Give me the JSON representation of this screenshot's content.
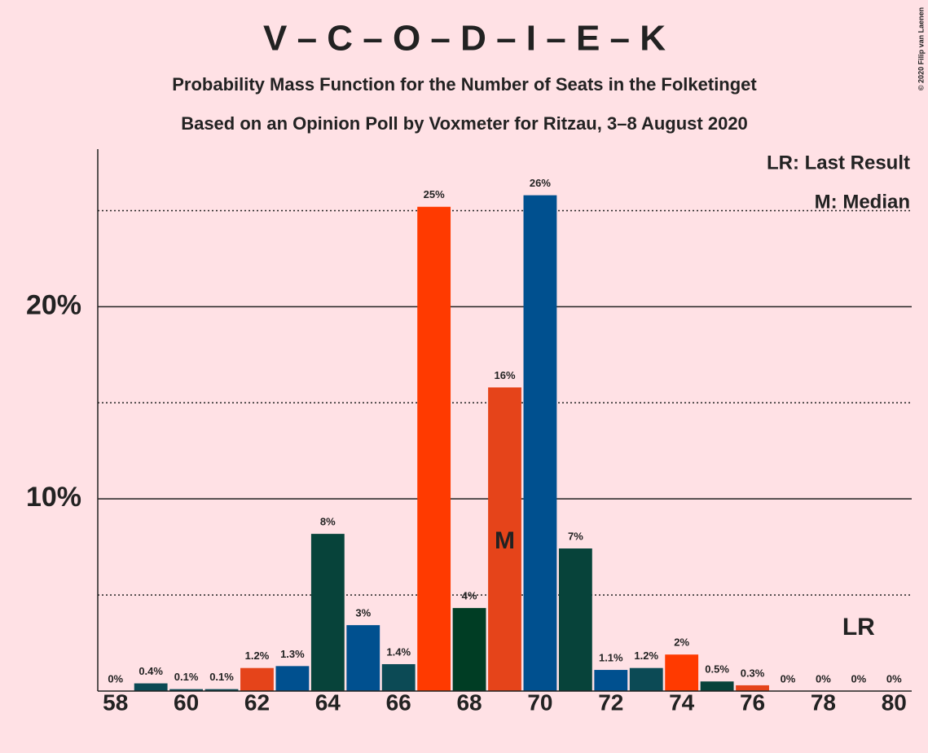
{
  "chart_data": {
    "type": "bar",
    "title": "V – C – O – D – I – E – K",
    "subtitle": [
      "Probability Mass Function for the Number of Seats in the Folketinget",
      "Based on an Opinion Poll by Voxmeter for Ritzau, 3–8 August 2020"
    ],
    "copyright": "© 2020 Filip van Laenen",
    "x": [
      58,
      59,
      60,
      61,
      62,
      63,
      64,
      65,
      66,
      67,
      68,
      69,
      70,
      71,
      72,
      73,
      74,
      75,
      76,
      77,
      78,
      79,
      80
    ],
    "values": [
      0,
      0.4,
      0.1,
      0.1,
      1.2,
      1.3,
      8.18,
      3.43,
      1.4,
      25.2,
      4.32,
      15.8,
      25.8,
      7.42,
      1.1,
      1.2,
      1.9,
      0.5,
      0.3,
      0,
      0,
      0,
      0
    ],
    "value_labels": [
      "0%",
      "0.4%",
      "0.1%",
      "0.1%",
      "1.2%",
      "1.3%",
      "8%",
      "3%",
      "1.4%",
      "25%",
      "4%",
      "16%",
      "26%",
      "7%",
      "1.1%",
      "1.2%",
      "2%",
      "0.5%",
      "0.3%",
      "0%",
      "0%",
      "0%",
      "0%"
    ],
    "colors": [
      "#0c4a55",
      "#0c4a55",
      "#0c4a55",
      "#0c4a55",
      "#e5441a",
      "#00508f",
      "#07433a",
      "#00508f",
      "#0c4a55",
      "#ff3a00",
      "#003d24",
      "#e5441a",
      "#00508f",
      "#07433a",
      "#00508f",
      "#0c4a55",
      "#ff3a00",
      "#07433a",
      "#e5441a",
      "#0c4a55",
      "#0c4a55",
      "#0c4a55",
      "#0c4a55"
    ],
    "xlim": [
      57.5,
      80.5
    ],
    "xticks": [
      58,
      60,
      62,
      64,
      66,
      68,
      70,
      72,
      74,
      76,
      78,
      80
    ],
    "ylim": [
      0,
      28.2
    ],
    "yticks": [
      {
        "value": 10,
        "label": "10%"
      },
      {
        "value": 20,
        "label": "20%"
      }
    ],
    "minor_yticks": [
      5,
      15,
      25
    ],
    "grid": true,
    "legend": [
      "LR: Last Result",
      "M: Median"
    ],
    "annotations": [
      {
        "x": 69,
        "text": "M"
      },
      {
        "x": 79,
        "text": "LR"
      }
    ]
  }
}
